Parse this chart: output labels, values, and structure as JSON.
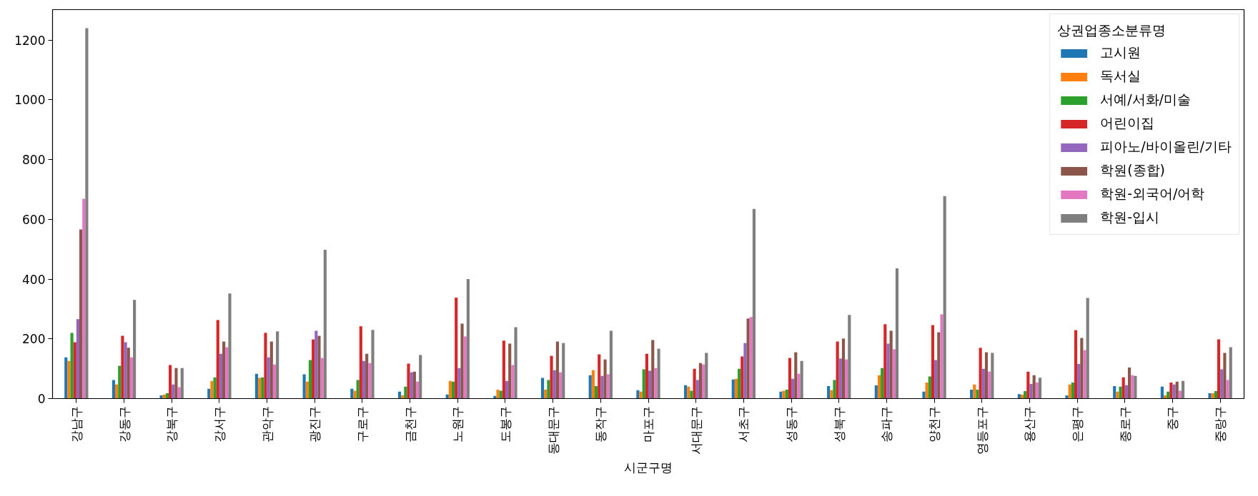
{
  "chart_data": {
    "type": "bar",
    "xlabel": "시군구명",
    "legend_title": "상권업종소분류명",
    "legend": "top right",
    "categories": [
      "강남구",
      "강동구",
      "강북구",
      "강서구",
      "관악구",
      "광진구",
      "구로구",
      "금천구",
      "노원구",
      "도봉구",
      "동대문구",
      "동작구",
      "마포구",
      "서대문구",
      "서초구",
      "성동구",
      "성북구",
      "송파구",
      "양천구",
      "영등포구",
      "용산구",
      "은평구",
      "종로구",
      "중구",
      "중랑구"
    ],
    "series": [
      {
        "name": "고시원",
        "color": "#1f77b4",
        "values": [
          138,
          62,
          11,
          33,
          83,
          81,
          33,
          23,
          14,
          9,
          69,
          78,
          28,
          45,
          64,
          23,
          42,
          44,
          23,
          30,
          15,
          11,
          42,
          40,
          18
        ]
      },
      {
        "name": "독서실",
        "color": "#ff7f0e",
        "values": [
          126,
          47,
          14,
          59,
          69,
          57,
          26,
          11,
          59,
          30,
          30,
          95,
          23,
          40,
          66,
          26,
          28,
          78,
          54,
          47,
          13,
          47,
          23,
          11,
          18
        ]
      },
      {
        "name": "서예/서화/미술",
        "color": "#2ca02c",
        "values": [
          220,
          110,
          18,
          71,
          71,
          129,
          62,
          40,
          57,
          26,
          62,
          42,
          98,
          26,
          100,
          30,
          62,
          102,
          74,
          30,
          25,
          54,
          40,
          23,
          25
        ]
      },
      {
        "name": "어린이집",
        "color": "#d62728",
        "values": [
          189,
          210,
          112,
          263,
          220,
          198,
          242,
          117,
          338,
          194,
          143,
          148,
          150,
          100,
          141,
          136,
          191,
          249,
          246,
          170,
          90,
          229,
          71,
          54,
          198
        ]
      },
      {
        "name": "피아노/바이올린/기타",
        "color": "#9467bd",
        "values": [
          266,
          189,
          47,
          150,
          138,
          227,
          126,
          88,
          102,
          59,
          95,
          76,
          93,
          62,
          186,
          66,
          134,
          184,
          129,
          100,
          49,
          116,
          45,
          47,
          98
        ]
      },
      {
        "name": "학원(종합)",
        "color": "#8c564b",
        "values": [
          566,
          170,
          102,
          191,
          191,
          210,
          150,
          90,
          251,
          184,
          191,
          131,
          196,
          119,
          268,
          155,
          201,
          227,
          222,
          155,
          78,
          203,
          104,
          57,
          153
        ]
      },
      {
        "name": "학원-외국어/어학",
        "color": "#e377c2",
        "values": [
          669,
          138,
          38,
          172,
          114,
          136,
          119,
          57,
          208,
          112,
          88,
          81,
          102,
          114,
          273,
          83,
          131,
          165,
          282,
          90,
          54,
          162,
          78,
          26,
          62
        ]
      },
      {
        "name": "학원-입시",
        "color": "#7f7f7f",
        "values": [
          1240,
          330,
          102,
          352,
          225,
          498,
          230,
          146,
          400,
          239,
          186,
          227,
          167,
          153,
          635,
          126,
          280,
          436,
          678,
          153,
          70,
          337,
          76,
          59,
          172
        ]
      }
    ],
    "ylim": [
      0,
      1302
    ],
    "yticks": [
      0,
      200,
      400,
      600,
      800,
      1000,
      1200
    ]
  }
}
